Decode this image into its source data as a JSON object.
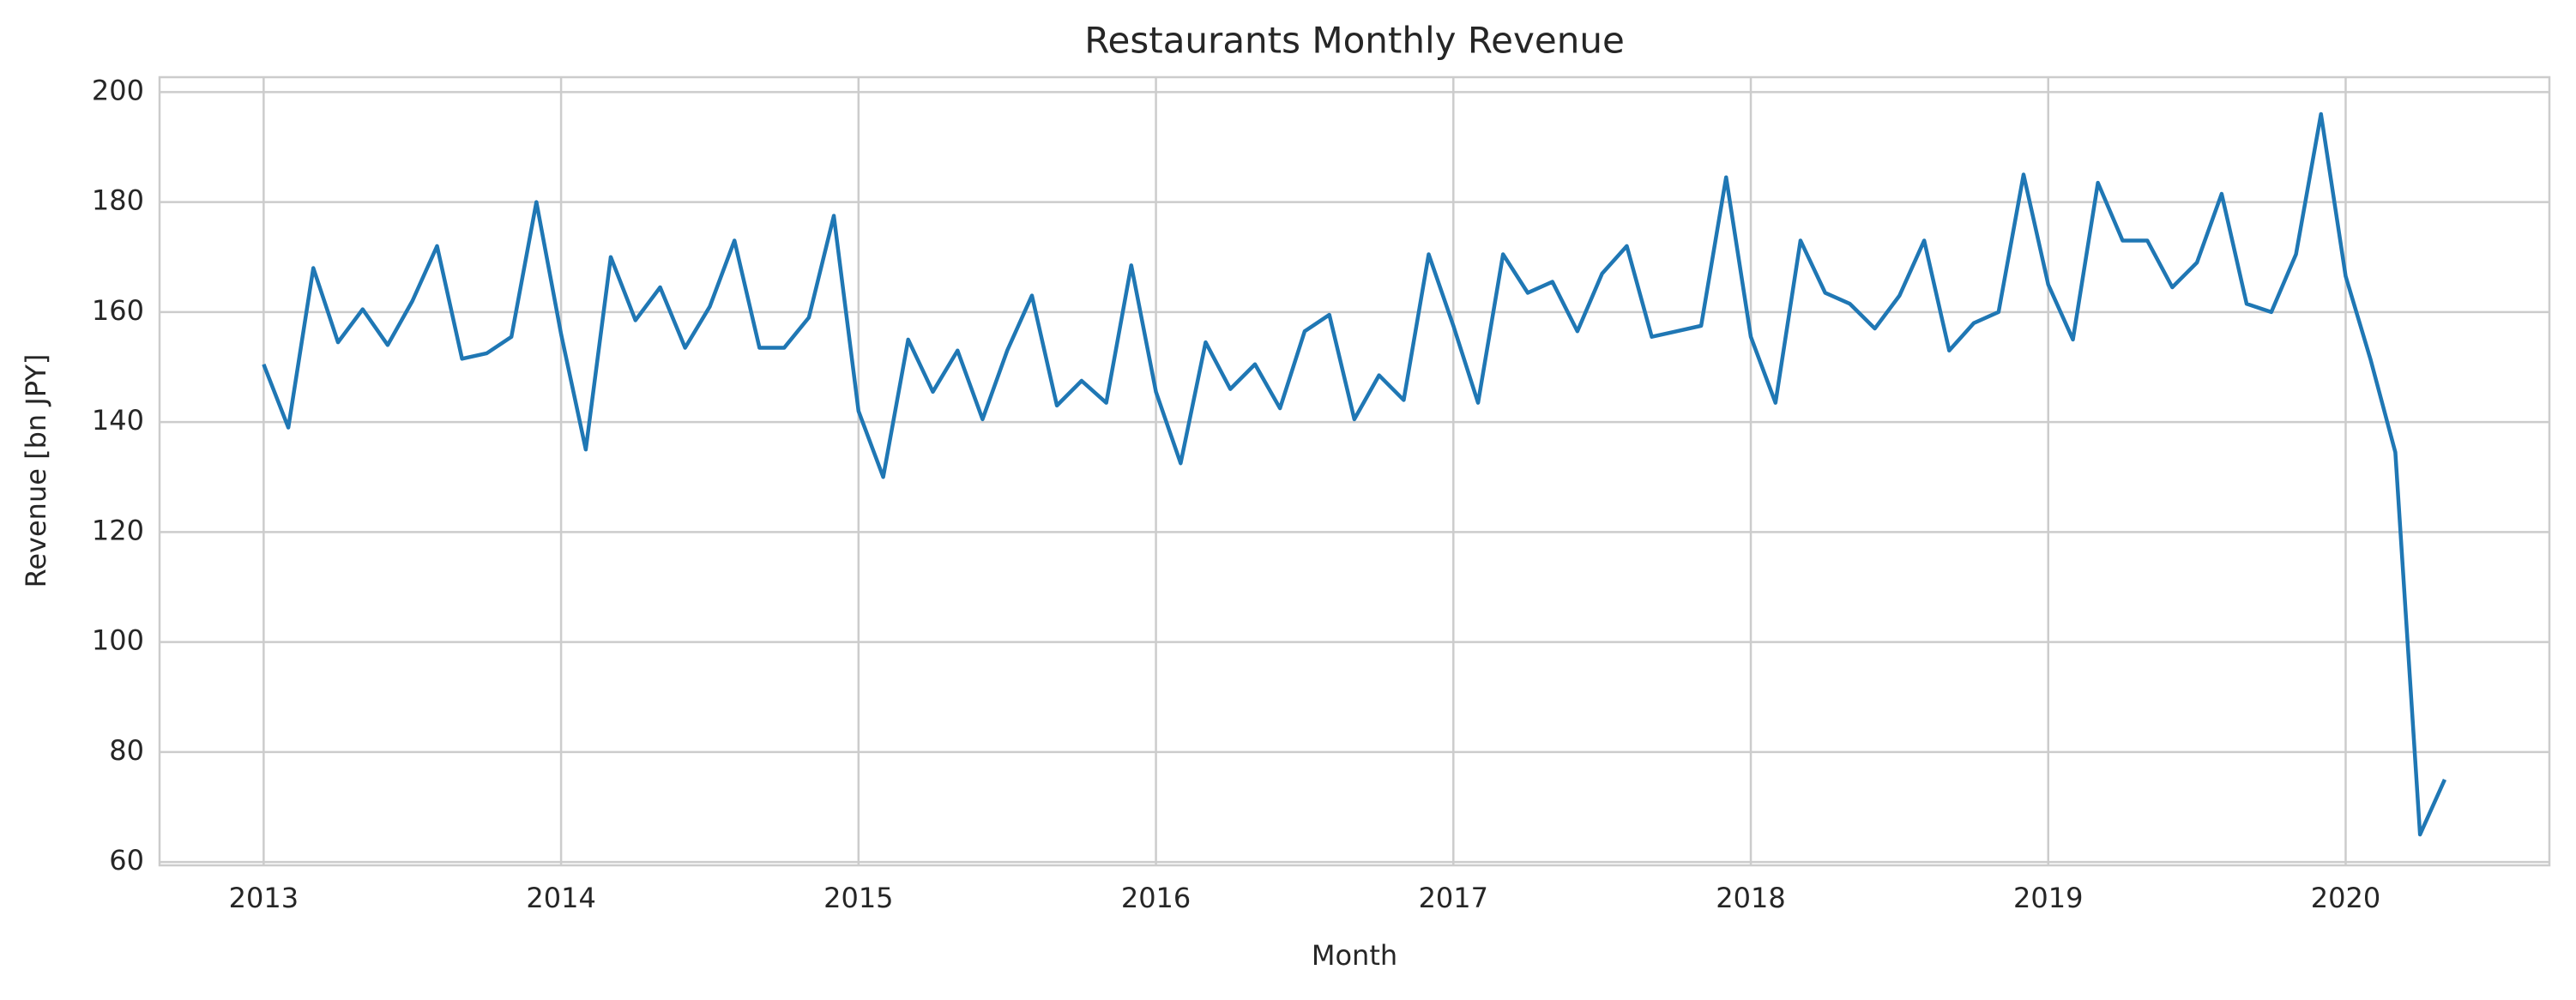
{
  "chart_data": {
    "type": "line",
    "title": "Restaurants Monthly Revenue",
    "x_label": "Month",
    "y_label": "Revenue [bn JPY]",
    "x": [
      2013.0,
      2013.083,
      2013.167,
      2013.25,
      2013.333,
      2013.417,
      2013.5,
      2013.583,
      2013.667,
      2013.75,
      2013.833,
      2013.917,
      2014.0,
      2014.083,
      2014.167,
      2014.25,
      2014.333,
      2014.417,
      2014.5,
      2014.583,
      2014.667,
      2014.75,
      2014.833,
      2014.917,
      2015.0,
      2015.083,
      2015.167,
      2015.25,
      2015.333,
      2015.417,
      2015.5,
      2015.583,
      2015.667,
      2015.75,
      2015.833,
      2015.917,
      2016.0,
      2016.083,
      2016.167,
      2016.25,
      2016.333,
      2016.417,
      2016.5,
      2016.583,
      2016.667,
      2016.75,
      2016.833,
      2016.917,
      2017.0,
      2017.083,
      2017.167,
      2017.25,
      2017.333,
      2017.417,
      2017.5,
      2017.583,
      2017.667,
      2017.75,
      2017.833,
      2017.917,
      2018.0,
      2018.083,
      2018.167,
      2018.25,
      2018.333,
      2018.417,
      2018.5,
      2018.583,
      2018.667,
      2018.75,
      2018.833,
      2018.917,
      2019.0,
      2019.083,
      2019.167,
      2019.25,
      2019.333,
      2019.417,
      2019.5,
      2019.583,
      2019.667,
      2019.75,
      2019.833,
      2019.917,
      2020.0,
      2020.083,
      2020.167,
      2020.25,
      2020.333
    ],
    "series": [
      {
        "name": "Revenue",
        "color": "#1f77b4",
        "values": [
          150.5,
          139,
          168,
          154.5,
          160.5,
          154,
          162,
          172,
          151.5,
          152.5,
          155.5,
          180,
          156,
          135,
          170,
          158.5,
          164.5,
          153.5,
          161,
          173,
          153.5,
          153.5,
          159,
          177.5,
          142,
          130,
          155,
          145.5,
          153,
          140.5,
          153,
          163,
          143,
          147.5,
          143.5,
          168.5,
          145.5,
          132.5,
          154.5,
          146,
          150.5,
          142.5,
          156.5,
          159.5,
          140.5,
          148.5,
          144,
          170.5,
          157.5,
          143.5,
          170.5,
          163.5,
          165.5,
          156.5,
          167,
          172,
          155.5,
          156.5,
          157.5,
          184.5,
          155.5,
          143.5,
          173,
          163.5,
          161.5,
          157,
          163,
          173,
          153,
          158,
          160,
          185,
          165,
          155,
          183.5,
          173,
          173,
          164.5,
          169,
          181.5,
          161.5,
          160,
          170.5,
          196,
          166.5,
          151.5,
          134.5,
          65,
          75
        ]
      }
    ],
    "xlim": [
      2012.65,
      2020.685
    ],
    "xticks": [
      2013,
      2014,
      2015,
      2016,
      2017,
      2018,
      2019,
      2020
    ],
    "ylim": [
      59.4,
      202.7
    ],
    "yticks": [
      60,
      80,
      100,
      120,
      140,
      160,
      180,
      200
    ],
    "grid": true
  }
}
